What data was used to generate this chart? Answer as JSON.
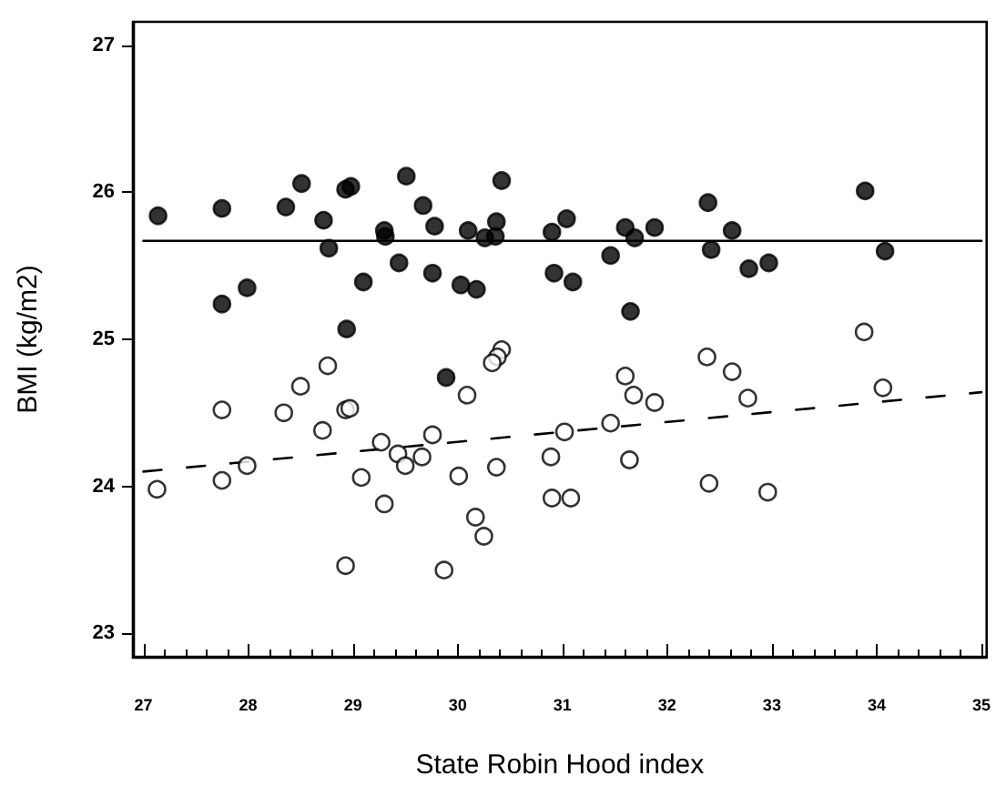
{
  "chart_data": {
    "type": "scatter",
    "xlabel": "State Robin Hood index",
    "ylabel": "BMI (kg/m2)",
    "xlim": [
      26.9,
      35.05
    ],
    "ylim": [
      22.84,
      27.16
    ],
    "xticks": [
      27,
      28,
      29,
      30,
      31,
      32,
      33,
      34,
      35
    ],
    "yticks": [
      23,
      24,
      25,
      26,
      27
    ],
    "grid": false,
    "marker": "circle",
    "series": [
      {
        "color": "#000000",
        "x": [
          27.14,
          27.75,
          28.36,
          28.51,
          28.72,
          28.77,
          28.93,
          28.98,
          29.51,
          29.67,
          29.78,
          29.3,
          29.31,
          29.44,
          29.1,
          29.76,
          30.03,
          30.18,
          30.1,
          30.26,
          30.37,
          30.42,
          27.75,
          27.99,
          28.94,
          29.89,
          30.36,
          30.9,
          31.04,
          30.92,
          31.1,
          31.46,
          31.6,
          31.69,
          31.88,
          31.65,
          32.39,
          32.42,
          32.62,
          32.78,
          32.97,
          33.89,
          34.08
        ],
        "values": [
          25.84,
          25.89,
          25.9,
          26.06,
          25.81,
          25.62,
          26.02,
          26.04,
          26.11,
          25.91,
          25.77,
          25.74,
          25.7,
          25.52,
          25.39,
          25.45,
          25.37,
          25.34,
          25.74,
          25.69,
          25.8,
          26.08,
          25.24,
          25.35,
          25.07,
          24.74,
          25.7,
          25.73,
          25.82,
          25.45,
          25.39,
          25.57,
          25.76,
          25.69,
          25.76,
          25.19,
          25.93,
          25.61,
          25.74,
          25.48,
          25.52,
          26.01,
          25.6
        ]
      },
      {
        "color": "#ffffff",
        "x": [
          27.75,
          28.34,
          28.5,
          28.76,
          28.93,
          28.97,
          30.09,
          30.42,
          30.38,
          30.33,
          31.6,
          31.68,
          31.88,
          32.38,
          32.62,
          32.77,
          33.88,
          34.06,
          30.37,
          30.89,
          31.02,
          31.46,
          31.64,
          30.9,
          31.08,
          32.4,
          32.96,
          27.13,
          27.75,
          27.99,
          28.71,
          28.93,
          29.08,
          29.27,
          29.3,
          29.43,
          29.5,
          29.66,
          29.76,
          29.87,
          30.01,
          30.17,
          30.25
        ],
        "values": [
          24.52,
          24.5,
          24.68,
          24.82,
          24.52,
          24.53,
          24.62,
          24.93,
          24.88,
          24.84,
          24.75,
          24.62,
          24.57,
          24.88,
          24.78,
          24.6,
          25.05,
          24.67,
          24.13,
          24.2,
          24.37,
          24.43,
          24.18,
          23.92,
          23.92,
          24.02,
          23.96,
          23.98,
          24.04,
          24.14,
          24.38,
          23.46,
          24.06,
          24.3,
          23.88,
          24.22,
          24.14,
          24.2,
          24.35,
          23.43,
          24.07,
          23.79,
          23.66
        ]
      },
      {
        "type": "line",
        "color": "#000000",
        "line_style": "solid",
        "marker": "none",
        "x": [
          27,
          35
        ],
        "values": [
          25.67,
          25.67
        ]
      },
      {
        "type": "line",
        "color": "#000000",
        "line_style": "dashed",
        "marker": "none",
        "x": [
          27,
          35
        ],
        "values": [
          24.1,
          24.64
        ]
      }
    ]
  }
}
